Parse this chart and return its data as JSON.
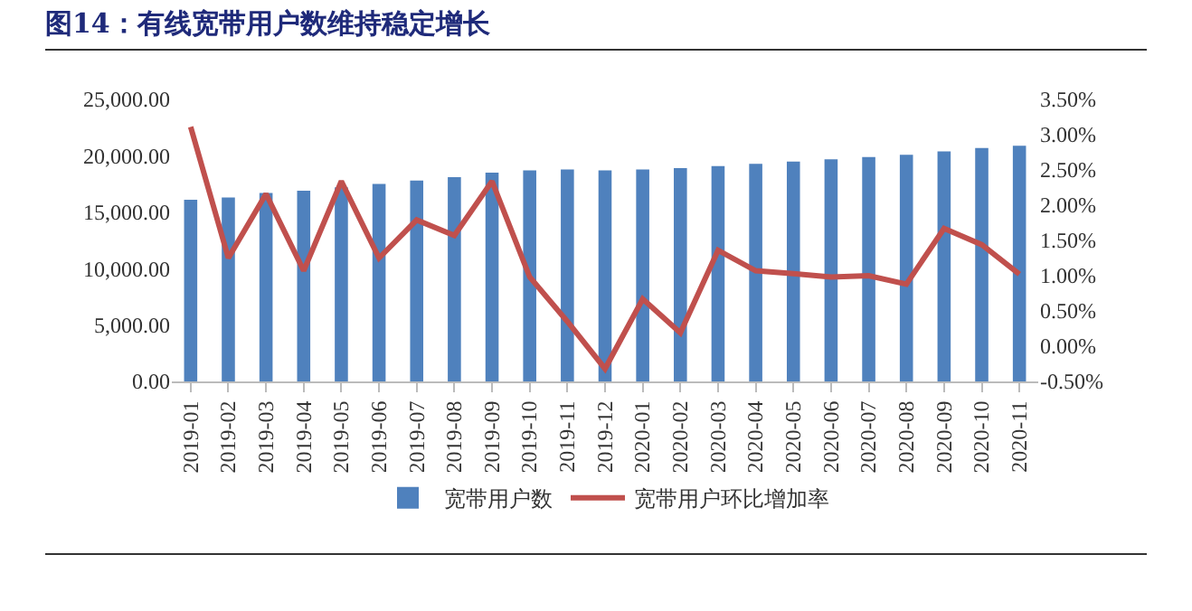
{
  "chart_data": {
    "type": "bar",
    "title": "图14：有线宽带用户数维持稳定增长",
    "categories": [
      "2019-01",
      "2019-02",
      "2019-03",
      "2019-04",
      "2019-05",
      "2019-06",
      "2019-07",
      "2019-08",
      "2019-09",
      "2019-10",
      "2019-11",
      "2019-12",
      "2020-01",
      "2020-02",
      "2020-03",
      "2020-04",
      "2020-05",
      "2020-06",
      "2020-07",
      "2020-08",
      "2020-09",
      "2020-10",
      "2020-11"
    ],
    "series": [
      {
        "name": "宽带用户数",
        "color": "#4f81bd",
        "values": [
          16100,
          16300,
          16700,
          16900,
          17200,
          17500,
          17800,
          18100,
          18500,
          18700,
          18800,
          18700,
          18800,
          18900,
          19100,
          19300,
          19500,
          19700,
          19900,
          20100,
          20400,
          20700,
          20900
        ]
      },
      {
        "name": "宽带用户环比增加率",
        "type": "line",
        "axis": "y2",
        "color": "#c0504d",
        "values": [
          3.11,
          1.25,
          2.16,
          1.07,
          2.34,
          1.25,
          1.79,
          1.57,
          2.34,
          0.98,
          0.35,
          -0.32,
          0.67,
          0.19,
          1.36,
          1.07,
          1.03,
          0.98,
          1.0,
          0.88,
          1.67,
          1.44,
          1.02
        ]
      }
    ],
    "ylim": [
      0,
      25000
    ],
    "yticks": [
      {
        "value": 0,
        "label": "0.00"
      },
      {
        "value": 5000,
        "label": "5,000.00"
      },
      {
        "value": 10000,
        "label": "10,000.00"
      },
      {
        "value": 15000,
        "label": "15,000.00"
      },
      {
        "value": 20000,
        "label": "20,000.00"
      },
      {
        "value": 25000,
        "label": "25,000.00"
      }
    ],
    "y2lim": [
      -0.5,
      3.5
    ],
    "y2ticks": [
      {
        "value": -0.5,
        "label": "-0.50%"
      },
      {
        "value": 0,
        "label": "0.00%"
      },
      {
        "value": 0.5,
        "label": "0.50%"
      },
      {
        "value": 1,
        "label": "1.00%"
      },
      {
        "value": 1.5,
        "label": "1.50%"
      },
      {
        "value": 2,
        "label": "2.00%"
      },
      {
        "value": 2.5,
        "label": "2.50%"
      },
      {
        "value": 3,
        "label": "3.00%"
      },
      {
        "value": 3.5,
        "label": "3.50%"
      }
    ],
    "grid": false,
    "legend": "bottom",
    "marker": "none",
    "line_style": "solid"
  }
}
